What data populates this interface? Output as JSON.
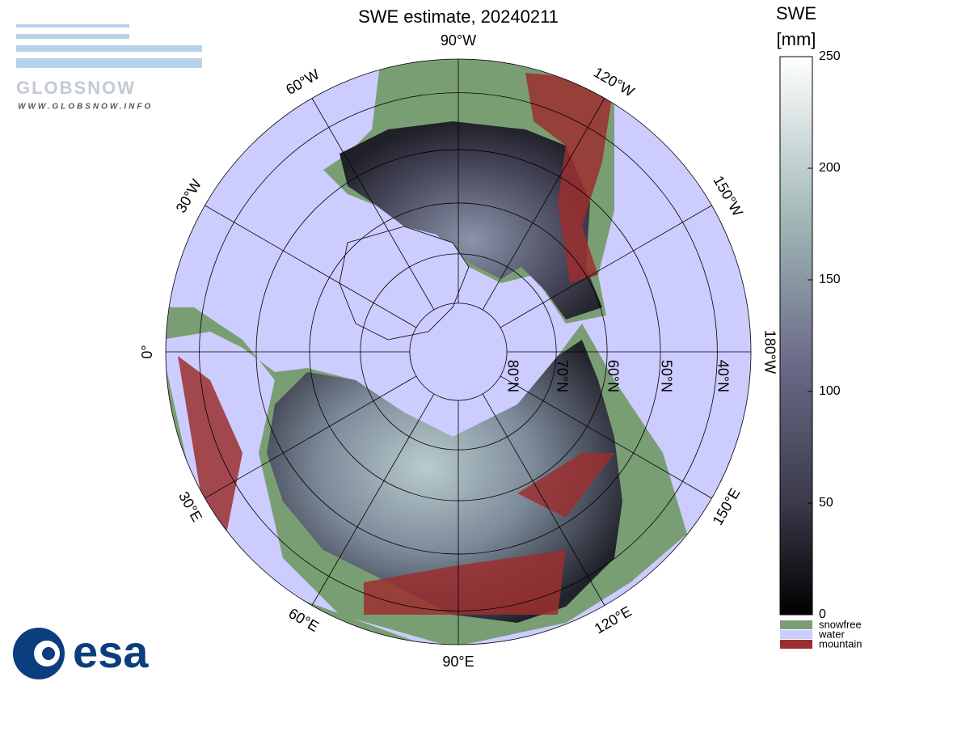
{
  "header": {
    "title": "SWE estimate, 20240211"
  },
  "logos": {
    "globsnow": "GLOBSNOW",
    "globsnow_url": "WWW.GLOBSNOW.INFO",
    "esa": "esa"
  },
  "map": {
    "meridians": [
      {
        "value": -90,
        "label": "90°W"
      },
      {
        "value": -120,
        "label": "120°W"
      },
      {
        "value": -150,
        "label": "150°W"
      },
      {
        "value": 180,
        "label": "180°W"
      },
      {
        "value": 150,
        "label": "150°E"
      },
      {
        "value": 120,
        "label": "120°E"
      },
      {
        "value": 90,
        "label": "90°E"
      },
      {
        "value": 60,
        "label": "60°E"
      },
      {
        "value": 30,
        "label": "30°E"
      },
      {
        "value": 0,
        "label": "0°"
      },
      {
        "value": -30,
        "label": "30°W"
      },
      {
        "value": -60,
        "label": "60°W"
      }
    ],
    "parallels": [
      {
        "value": 40,
        "label": "40°N"
      },
      {
        "value": 50,
        "label": "50°N"
      },
      {
        "value": 60,
        "label": "60°N"
      },
      {
        "value": 70,
        "label": "70°N"
      },
      {
        "value": 80,
        "label": "80°N"
      }
    ]
  },
  "colorbar": {
    "title": [
      "SWE",
      "[mm]"
    ],
    "lim": [
      0,
      250
    ],
    "ticks": [
      0,
      50,
      100,
      150,
      200,
      250
    ],
    "classes": [
      {
        "name": "snowfree",
        "color": "#7a9e74"
      },
      {
        "name": "water",
        "color": "#ccccff"
      },
      {
        "name": "mountain",
        "color": "#9b2f2f"
      }
    ]
  }
}
